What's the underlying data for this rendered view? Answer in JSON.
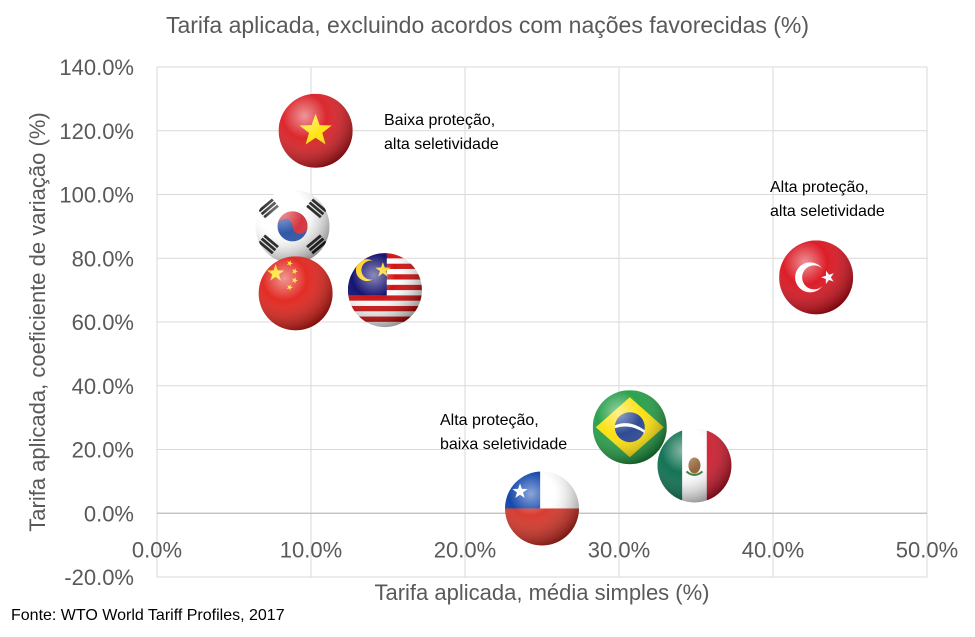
{
  "chart_data": {
    "type": "scatter",
    "title": "Tarifa aplicada, excluindo acordos com nações favorecidas (%)",
    "xlabel": "Tarifa aplicada, média simples (%)",
    "ylabel": "Tarifa aplicada, coeficiente de variação (%)",
    "xlim": [
      0,
      50
    ],
    "ylim": [
      -20,
      140
    ],
    "x_ticks": [
      0,
      10,
      20,
      30,
      40,
      50
    ],
    "x_tick_labels": [
      "0.0%",
      "10.0%",
      "20.0%",
      "30.0%",
      "40.0%",
      "50.0%"
    ],
    "y_ticks": [
      -20,
      0,
      20,
      40,
      60,
      80,
      100,
      120,
      140
    ],
    "y_tick_labels": [
      "-20.0%",
      "0.0%",
      "20.0%",
      "40.0%",
      "60.0%",
      "80.0%",
      "100.0%",
      "120.0%",
      "140.0%"
    ],
    "grid": true,
    "points": [
      {
        "flag": "vietnam",
        "x": 10.3,
        "y": 120
      },
      {
        "flag": "south-korea",
        "x": 8.8,
        "y": 90
      },
      {
        "flag": "china",
        "x": 9.0,
        "y": 69
      },
      {
        "flag": "malaysia",
        "x": 14.8,
        "y": 70
      },
      {
        "flag": "turkey",
        "x": 42.8,
        "y": 74
      },
      {
        "flag": "brazil",
        "x": 30.7,
        "y": 27
      },
      {
        "flag": "mexico",
        "x": 34.9,
        "y": 15
      },
      {
        "flag": "chile",
        "x": 25.0,
        "y": 1.5
      }
    ],
    "annotations": [
      {
        "lines": [
          "Baixa proteção,",
          "alta seletividade"
        ]
      },
      {
        "lines": [
          "Alta proteção,",
          "alta seletividade"
        ]
      },
      {
        "lines": [
          "Alta proteção,",
          "baixa seletividade"
        ]
      }
    ]
  },
  "source": "Fonte: WTO World Tariff Profiles, 2017",
  "colors": {
    "grid": "#d9d9d9",
    "tick_text": "#595959"
  }
}
